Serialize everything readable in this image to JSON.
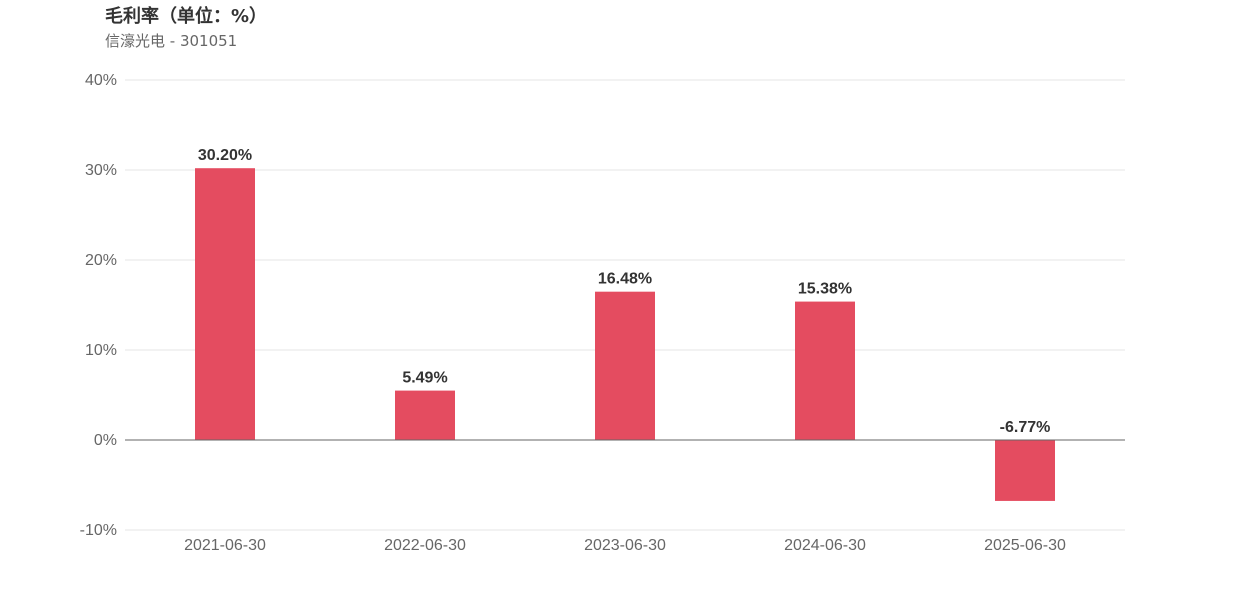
{
  "header": {
    "title": "毛利率（单位：%）",
    "subtitle": "信濠光电 - 301051"
  },
  "colors": {
    "bar": "#e44c60",
    "grid": "#e6e6e6",
    "zero_line": "#666666",
    "label": "#333333",
    "axis_text": "#666666"
  },
  "chart_data": {
    "type": "bar",
    "title": "毛利率（单位：%）",
    "subtitle": "信濠光电 - 301051",
    "categories": [
      "2021-06-30",
      "2022-06-30",
      "2023-06-30",
      "2024-06-30",
      "2025-06-30"
    ],
    "values": [
      30.2,
      5.49,
      16.48,
      15.38,
      -6.77
    ],
    "data_labels": [
      "30.20%",
      "5.49%",
      "16.48%",
      "15.38%",
      "-6.77%"
    ],
    "ylim": [
      -10,
      40
    ],
    "yticks": [
      40,
      30,
      20,
      10,
      0,
      -10
    ],
    "ytick_labels": [
      "40%",
      "30%",
      "20%",
      "10%",
      "0%",
      "-10%"
    ],
    "grid": true,
    "legend": false
  }
}
